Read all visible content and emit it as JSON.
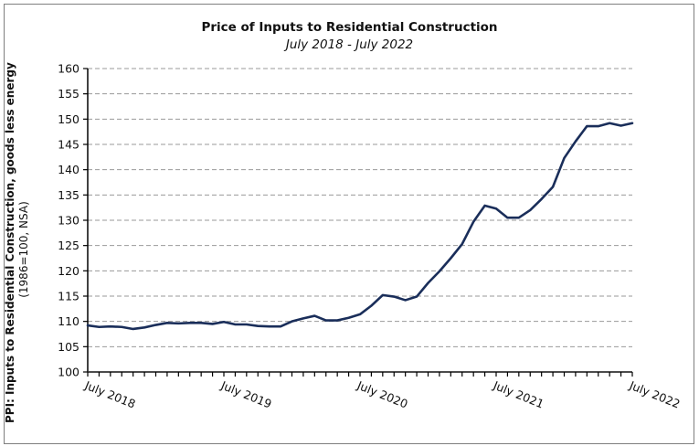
{
  "chart_data": {
    "type": "line",
    "title": "Price of Inputs to Residential Construction",
    "subtitle": "July 2018 - July 2022",
    "ylabel": "PPI: Inputs to Residential Construction, goods less energy",
    "ylabel_sub": "(1986=100, NSA)",
    "xlabel": "",
    "ylim": [
      100,
      160
    ],
    "yticks": [
      "100",
      "105",
      "110",
      "115",
      "120",
      "125",
      "130",
      "135",
      "140",
      "145",
      "150",
      "155",
      "160"
    ],
    "xtick_labels": [
      "July 2018",
      "July 2019",
      "July 2020",
      "July 2021",
      "July 2022"
    ],
    "xtick_label_index": [
      0,
      12,
      24,
      36,
      48
    ],
    "grid": true,
    "line_color": "#1a2e5a",
    "series": [
      {
        "name": "PPI: Inputs to Residential Construction, goods less energy",
        "values": [
          109.2,
          108.9,
          109.0,
          108.9,
          108.5,
          108.8,
          109.3,
          109.7,
          109.6,
          109.7,
          109.7,
          109.5,
          109.9,
          109.4,
          109.4,
          109.1,
          109.0,
          109.0,
          110.0,
          110.6,
          111.1,
          110.2,
          110.2,
          110.7,
          111.4,
          113.1,
          115.2,
          114.9,
          114.2,
          114.9,
          117.6,
          119.9,
          122.5,
          125.3,
          129.7,
          132.9,
          132.3,
          130.5,
          130.5,
          132.0,
          134.2,
          136.6,
          142.3,
          145.6,
          148.6,
          148.6,
          149.2,
          148.7,
          149.2
        ]
      }
    ]
  }
}
